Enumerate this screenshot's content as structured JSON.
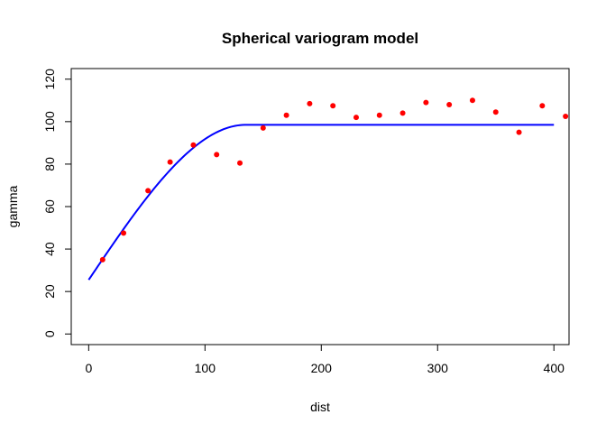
{
  "chart_data": {
    "type": "scatter",
    "title": "Spherical variogram model",
    "xlabel": "dist",
    "ylabel": "gamma",
    "xlim": [
      -15,
      413
    ],
    "ylim": [
      -5,
      125
    ],
    "xticks": [
      0,
      100,
      200,
      300,
      400
    ],
    "yticks": [
      0,
      20,
      40,
      60,
      80,
      100,
      120
    ],
    "grid": false,
    "colors": {
      "points": "#ff0000",
      "model": "#0000ff"
    },
    "points": {
      "x": [
        12,
        30,
        51,
        70,
        90,
        110,
        130,
        150,
        170,
        190,
        210,
        230,
        250,
        270,
        290,
        310,
        330,
        350,
        370,
        390,
        410
      ],
      "y": [
        35,
        47.5,
        67.5,
        81,
        89,
        84.5,
        80.5,
        97,
        103,
        108.5,
        107.5,
        102,
        103,
        104,
        109,
        108,
        110,
        104.5,
        95,
        107.5,
        102.5
      ]
    },
    "model": {
      "type": "spherical",
      "nugget": 25.5,
      "sill": 98.5,
      "range": 135,
      "x_from": 0,
      "x_to": 400
    }
  }
}
